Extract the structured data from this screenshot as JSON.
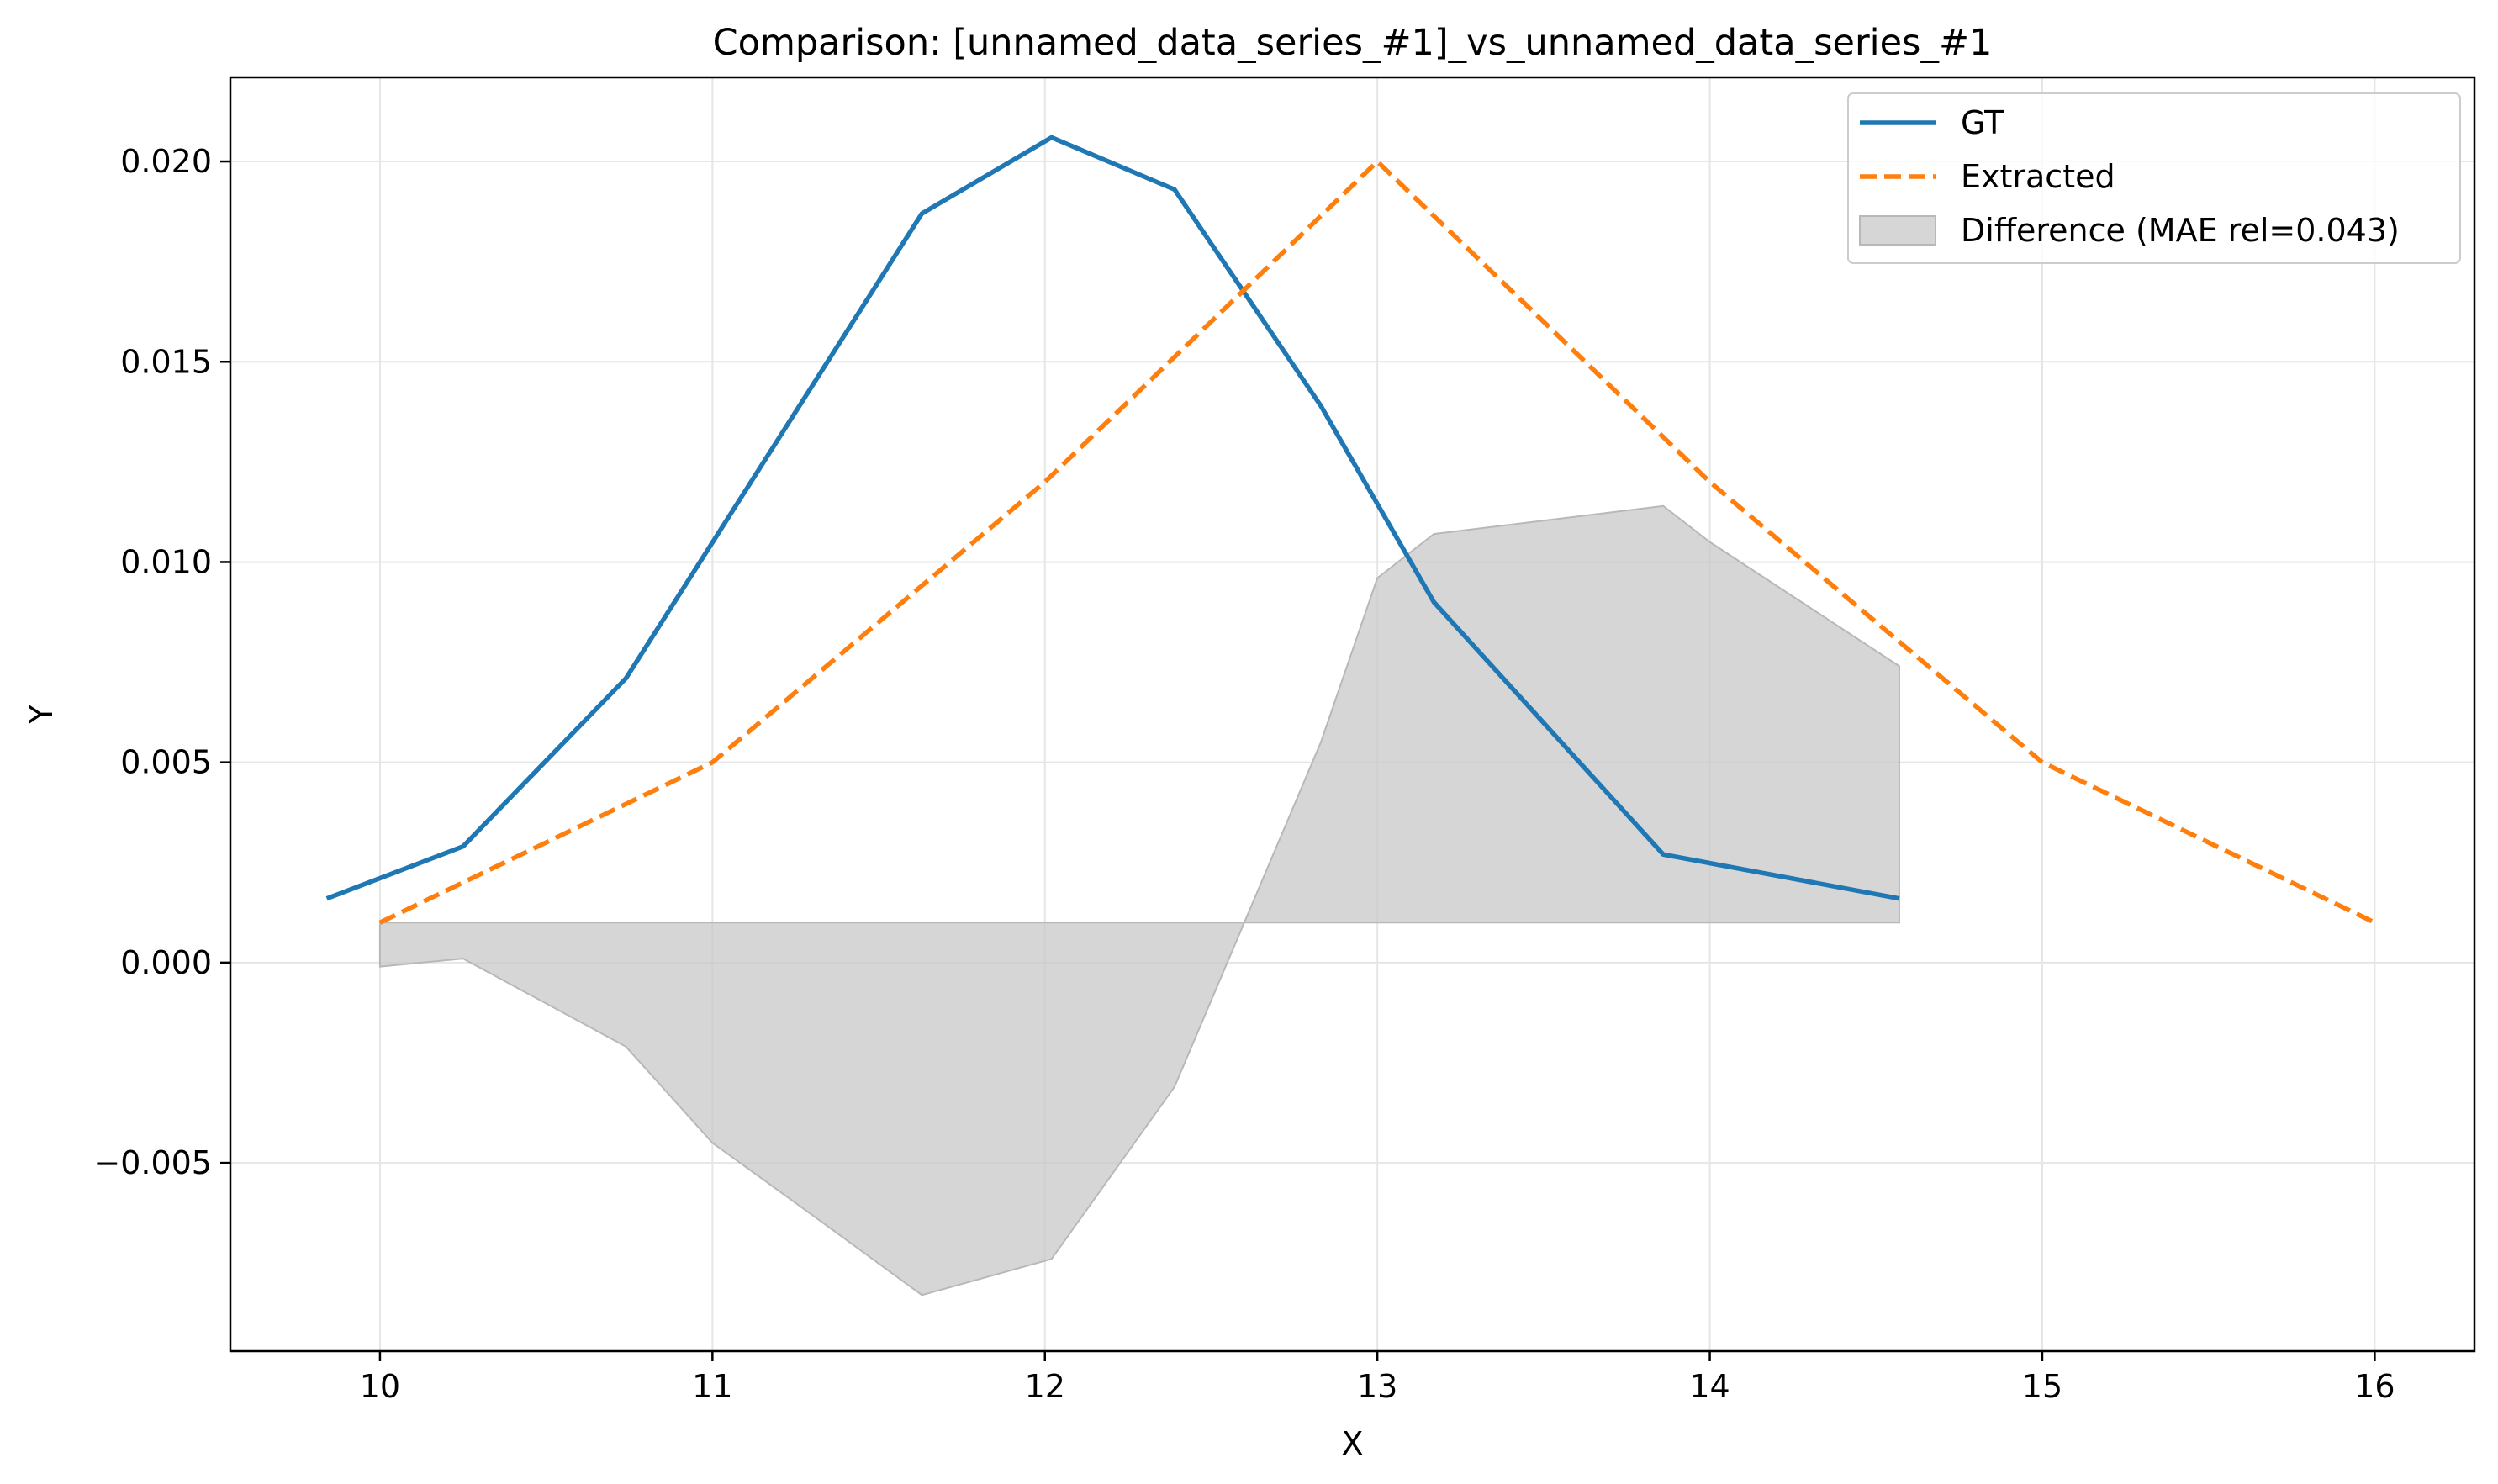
{
  "chart_data": {
    "type": "line",
    "title": "Comparison: [unnamed_data_series_#1]_vs_unnamed_data_series_#1",
    "xlabel": "X",
    "ylabel": "Y",
    "xlim": [
      9.55,
      16.3
    ],
    "ylim": [
      -0.0097,
      0.0221
    ],
    "x_ticks": [
      10,
      11,
      12,
      13,
      14,
      15,
      16
    ],
    "y_ticks": [
      -0.005,
      0.0,
      0.005,
      0.01,
      0.015,
      0.02
    ],
    "x_tick_labels": [
      "10",
      "11",
      "12",
      "13",
      "14",
      "15",
      "16"
    ],
    "y_tick_labels": [
      "−0.005",
      "0.000",
      "0.005",
      "0.010",
      "0.015",
      "0.020"
    ],
    "grid": true,
    "legend_position": "top-right",
    "series": [
      {
        "name": "GT",
        "color": "#1f77b4",
        "style": "solid",
        "x": [
          9.84,
          10.25,
          10.74,
          11.63,
          12.02,
          12.39,
          12.83,
          13.17,
          13.86,
          14.57
        ],
        "y": [
          0.0016,
          0.0029,
          0.0071,
          0.0187,
          0.0206,
          0.0193,
          0.0139,
          0.009,
          0.0027,
          0.0016
        ]
      },
      {
        "name": "Extracted",
        "color": "#ff7f0e",
        "style": "dashed",
        "x": [
          10,
          11,
          12,
          13,
          14,
          15,
          16
        ],
        "y": [
          0.001,
          0.005,
          0.012,
          0.02,
          0.012,
          0.005,
          0.001
        ]
      }
    ],
    "difference": {
      "name": "Difference (MAE rel=0.043)",
      "color": "#c8c8c8",
      "baseline": 0.001,
      "x": [
        10.0,
        10.25,
        10.74,
        11.0,
        11.3,
        11.63,
        12.02,
        12.39,
        12.83,
        13.0,
        13.17,
        13.86,
        14.0,
        14.57
      ],
      "y": [
        -0.0001,
        0.0001,
        -0.0021,
        -0.0045,
        -0.0063,
        -0.0083,
        -0.0074,
        -0.0031,
        0.0055,
        0.0096,
        0.0107,
        0.0114,
        0.0105,
        0.0074
      ]
    }
  }
}
